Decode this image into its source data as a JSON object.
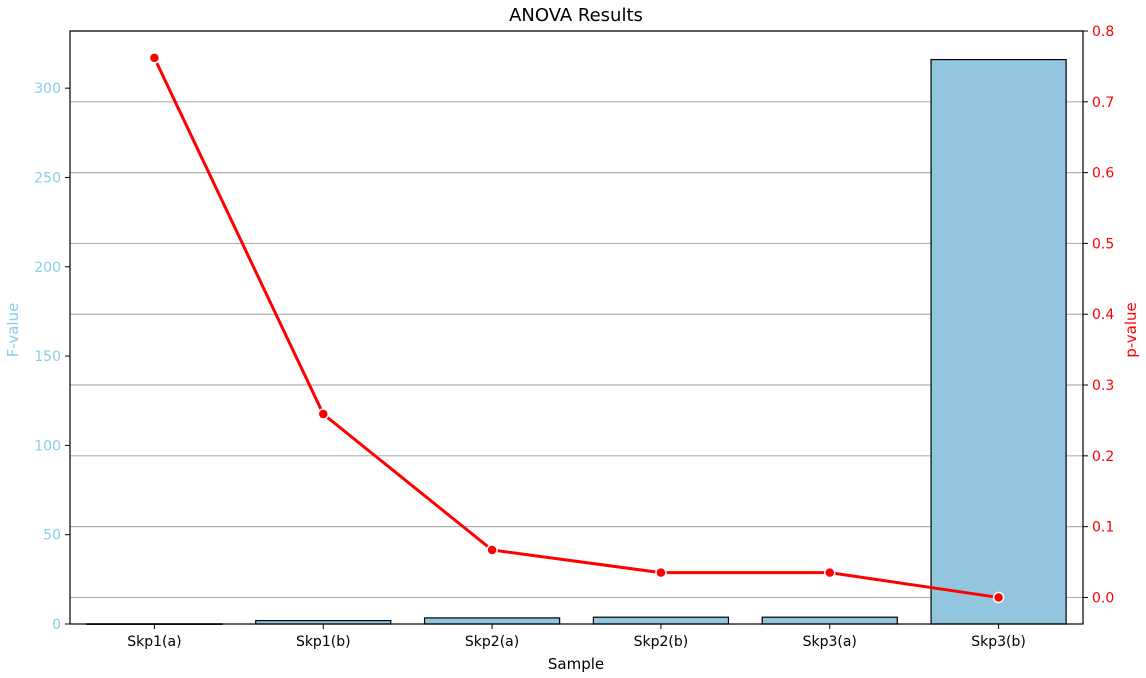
{
  "chart_data": {
    "type": "bar",
    "title": "ANOVA Results",
    "xlabel": "Sample",
    "ylabel": "F-value",
    "y2label": "p-value",
    "categories": [
      "Skp1(a)",
      "Skp1(b)",
      "Skp2(a)",
      "Skp2(b)",
      "Skp3(a)",
      "Skp3(b)"
    ],
    "series": [
      {
        "type": "bar",
        "axis": "left",
        "values": [
          0.1,
          1.9,
          3.4,
          3.8,
          3.8,
          316
        ],
        "color": "#92c5de"
      },
      {
        "type": "line",
        "axis": "right",
        "values": [
          0.762,
          0.259,
          0.067,
          0.035,
          0.035,
          0.0
        ],
        "color": "#ff0000"
      }
    ],
    "ylim": [
      0,
      332
    ],
    "y2lim": [
      -0.0375,
      0.8
    ],
    "yticks": [
      0,
      50,
      100,
      150,
      200,
      250,
      300
    ],
    "y2ticks": [
      0.0,
      0.1,
      0.2,
      0.3,
      0.4,
      0.5,
      0.6,
      0.7,
      0.8
    ],
    "grid": "right-axis horizontal",
    "colors": {
      "left_axis": "#87ceeb",
      "right_axis": "#ff0000",
      "bar_edge": "#000000",
      "grid": "#b0b0b0"
    }
  }
}
